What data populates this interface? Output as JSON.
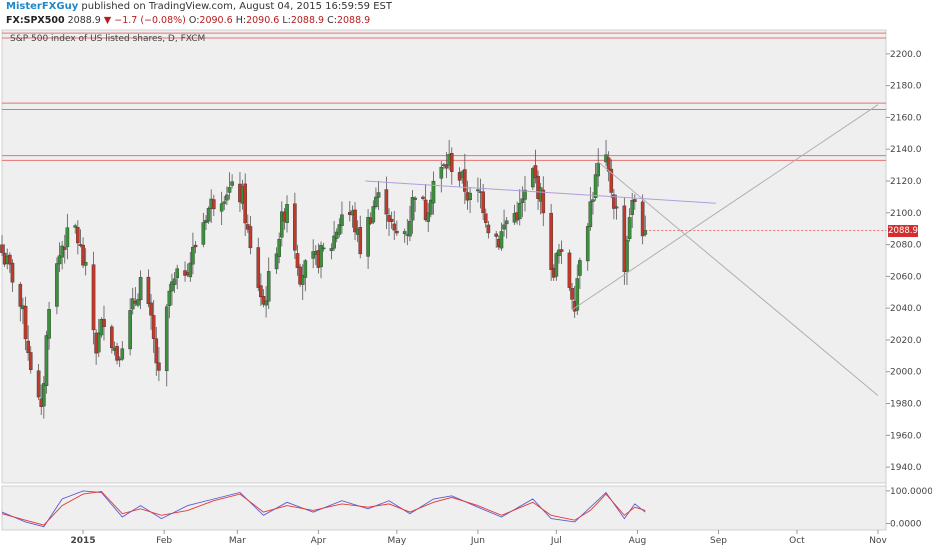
{
  "header": {
    "username": "MisterFXGuy",
    "published_text": "published on TradingView.com, August 04, 2015 16:59:59 EST",
    "symbol": "FX:SPX500",
    "last_price": "2088.9",
    "change_arrow": "▼",
    "change": "−1.7 (−0.08%)",
    "open_label": "O:",
    "open": "2090.6",
    "high_label": "H:",
    "high": "2090.6",
    "low_label": "L:",
    "low": "2088.9",
    "close_label": "C:",
    "close": "2088.9"
  },
  "colors": {
    "up": "#3c8f3c",
    "down": "#c0392b",
    "resistance": "#e57373",
    "trendline_purple": "#b39ddb",
    "trendline_gray": "#b0b0b0",
    "rsi_blue": "#5b5bd6",
    "rsi_red": "#e53935",
    "badge": "#d32f2f"
  },
  "chart_data": {
    "type": "candlestick",
    "title": "S&P 500 index of US listed shares, D, FXCM",
    "price_axis": {
      "ylim": [
        1930,
        2215
      ],
      "ticks": [
        "2200.0",
        "2180.0",
        "2160.0",
        "2140.0",
        "2120.0",
        "2100.0",
        "2080.0",
        "2060.0",
        "2040.0",
        "2020.0",
        "2000.0",
        "1980.0",
        "1960.0",
        "1940.0"
      ],
      "last_price_label": "2088.9"
    },
    "time_axis": {
      "range": [
        "2014-12-01",
        "2015-11-01"
      ],
      "labels": [
        {
          "text": "2015",
          "date": "2015-01-01",
          "emphasis": true
        },
        {
          "text": "Feb",
          "date": "2015-02-01"
        },
        {
          "text": "Mar",
          "date": "2015-03-01"
        },
        {
          "text": "Apr",
          "date": "2015-04-01"
        },
        {
          "text": "May",
          "date": "2015-05-01"
        },
        {
          "text": "Jun",
          "date": "2015-06-01"
        },
        {
          "text": "Jul",
          "date": "2015-07-01"
        },
        {
          "text": "Aug",
          "date": "2015-08-01"
        },
        {
          "text": "Sep",
          "date": "2015-09-01"
        },
        {
          "text": "Oct",
          "date": "2015-10-01"
        },
        {
          "text": "Nov",
          "date": "2015-11-01"
        }
      ]
    },
    "close_path": [
      {
        "date": "2014-12-01",
        "close": 2075
      },
      {
        "date": "2014-12-05",
        "close": 2060
      },
      {
        "date": "2014-12-09",
        "close": 2035
      },
      {
        "date": "2014-12-12",
        "close": 2005
      },
      {
        "date": "2014-12-16",
        "close": 1972
      },
      {
        "date": "2014-12-19",
        "close": 2045
      },
      {
        "date": "2014-12-24",
        "close": 2080
      },
      {
        "date": "2014-12-29",
        "close": 2090
      },
      {
        "date": "2015-01-02",
        "close": 2062
      },
      {
        "date": "2015-01-06",
        "close": 2015
      },
      {
        "date": "2015-01-09",
        "close": 2035
      },
      {
        "date": "2015-01-14",
        "close": 2010
      },
      {
        "date": "2015-01-16",
        "close": 2020
      },
      {
        "date": "2015-01-21",
        "close": 2045
      },
      {
        "date": "2015-01-23",
        "close": 2058
      },
      {
        "date": "2015-01-27",
        "close": 2030
      },
      {
        "date": "2015-01-30",
        "close": 1995
      },
      {
        "date": "2015-02-03",
        "close": 2050
      },
      {
        "date": "2015-02-06",
        "close": 2058
      },
      {
        "date": "2015-02-11",
        "close": 2070
      },
      {
        "date": "2015-02-17",
        "close": 2100
      },
      {
        "date": "2015-02-20",
        "close": 2108
      },
      {
        "date": "2015-02-25",
        "close": 2115
      },
      {
        "date": "2015-03-03",
        "close": 2110
      },
      {
        "date": "2015-03-06",
        "close": 2075
      },
      {
        "date": "2015-03-11",
        "close": 2042
      },
      {
        "date": "2015-03-16",
        "close": 2080
      },
      {
        "date": "2015-03-20",
        "close": 2108
      },
      {
        "date": "2015-03-25",
        "close": 2062
      },
      {
        "date": "2015-03-31",
        "close": 2070
      },
      {
        "date": "2015-04-06",
        "close": 2080
      },
      {
        "date": "2015-04-10",
        "close": 2100
      },
      {
        "date": "2015-04-14",
        "close": 2098
      },
      {
        "date": "2015-04-17",
        "close": 2078
      },
      {
        "date": "2015-04-23",
        "close": 2110
      },
      {
        "date": "2015-04-27",
        "close": 2105
      },
      {
        "date": "2015-04-30",
        "close": 2085
      },
      {
        "date": "2015-05-05",
        "close": 2090
      },
      {
        "date": "2015-05-08",
        "close": 2115
      },
      {
        "date": "2015-05-12",
        "close": 2100
      },
      {
        "date": "2015-05-15",
        "close": 2120
      },
      {
        "date": "2015-05-19",
        "close": 2128
      },
      {
        "date": "2015-05-21",
        "close": 2133
      },
      {
        "date": "2015-05-26",
        "close": 2120
      },
      {
        "date": "2015-05-29",
        "close": 2108
      },
      {
        "date": "2015-06-02",
        "close": 2112
      },
      {
        "date": "2015-06-05",
        "close": 2092
      },
      {
        "date": "2015-06-09",
        "close": 2083
      },
      {
        "date": "2015-06-12",
        "close": 2095
      },
      {
        "date": "2015-06-17",
        "close": 2102
      },
      {
        "date": "2015-06-22",
        "close": 2125
      },
      {
        "date": "2015-06-26",
        "close": 2105
      },
      {
        "date": "2015-06-29",
        "close": 2060
      },
      {
        "date": "2015-07-02",
        "close": 2075
      },
      {
        "date": "2015-07-08",
        "close": 2045
      },
      {
        "date": "2015-07-10",
        "close": 2075
      },
      {
        "date": "2015-07-14",
        "close": 2105
      },
      {
        "date": "2015-07-17",
        "close": 2128
      },
      {
        "date": "2015-07-20",
        "close": 2130
      },
      {
        "date": "2015-07-24",
        "close": 2100
      },
      {
        "date": "2015-07-27",
        "close": 2068
      },
      {
        "date": "2015-07-29",
        "close": 2100
      },
      {
        "date": "2015-07-31",
        "close": 2108
      },
      {
        "date": "2015-08-03",
        "close": 2090
      },
      {
        "date": "2015-08-04",
        "close": 2088.9
      }
    ],
    "horizontal_levels": [
      {
        "bands": [
          2210,
          2213
        ],
        "color": "resistance"
      },
      {
        "bands": [
          2165,
          2169
        ],
        "color": "resistance"
      },
      {
        "bands": [
          2133,
          2136
        ],
        "color": "resistance"
      }
    ],
    "trendlines": [
      {
        "from": {
          "date": "2015-04-19",
          "price": 2120
        },
        "to": {
          "date": "2015-08-31",
          "price": 2106
        },
        "color": "trendline_purple"
      },
      {
        "from": {
          "date": "2015-07-07",
          "price": 2039
        },
        "to": {
          "date": "2015-11-01",
          "price": 2168
        },
        "color": "trendline_gray"
      },
      {
        "from": {
          "date": "2015-07-17",
          "price": 2132
        },
        "to": {
          "date": "2015-11-01",
          "price": 1985
        },
        "color": "trendline_gray"
      }
    ],
    "indicator": {
      "ylim": [
        -20,
        115
      ],
      "ticks": [
        "100.0000",
        "0.0000"
      ],
      "series": [
        {
          "color": "rsi_blue",
          "values": [
            {
              "date": "2014-12-01",
              "v": 35
            },
            {
              "date": "2014-12-10",
              "v": 5
            },
            {
              "date": "2014-12-17",
              "v": -10
            },
            {
              "date": "2014-12-24",
              "v": 75
            },
            {
              "date": "2015-01-01",
              "v": 100
            },
            {
              "date": "2015-01-08",
              "v": 95
            },
            {
              "date": "2015-01-16",
              "v": 20
            },
            {
              "date": "2015-01-23",
              "v": 55
            },
            {
              "date": "2015-01-31",
              "v": 15
            },
            {
              "date": "2015-02-10",
              "v": 55
            },
            {
              "date": "2015-02-20",
              "v": 75
            },
            {
              "date": "2015-03-02",
              "v": 95
            },
            {
              "date": "2015-03-11",
              "v": 25
            },
            {
              "date": "2015-03-20",
              "v": 65
            },
            {
              "date": "2015-03-30",
              "v": 35
            },
            {
              "date": "2015-04-10",
              "v": 70
            },
            {
              "date": "2015-04-20",
              "v": 45
            },
            {
              "date": "2015-04-28",
              "v": 70
            },
            {
              "date": "2015-05-06",
              "v": 30
            },
            {
              "date": "2015-05-15",
              "v": 75
            },
            {
              "date": "2015-05-22",
              "v": 85
            },
            {
              "date": "2015-06-01",
              "v": 50
            },
            {
              "date": "2015-06-10",
              "v": 20
            },
            {
              "date": "2015-06-22",
              "v": 75
            },
            {
              "date": "2015-06-29",
              "v": 15
            },
            {
              "date": "2015-07-08",
              "v": 5
            },
            {
              "date": "2015-07-14",
              "v": 50
            },
            {
              "date": "2015-07-20",
              "v": 95
            },
            {
              "date": "2015-07-27",
              "v": 15
            },
            {
              "date": "2015-07-31",
              "v": 60
            },
            {
              "date": "2015-08-04",
              "v": 35
            }
          ]
        },
        {
          "color": "rsi_red",
          "values": [
            {
              "date": "2014-12-01",
              "v": 30
            },
            {
              "date": "2014-12-10",
              "v": 10
            },
            {
              "date": "2014-12-17",
              "v": -5
            },
            {
              "date": "2014-12-24",
              "v": 55
            },
            {
              "date": "2015-01-01",
              "v": 90
            },
            {
              "date": "2015-01-08",
              "v": 98
            },
            {
              "date": "2015-01-16",
              "v": 30
            },
            {
              "date": "2015-01-23",
              "v": 45
            },
            {
              "date": "2015-01-31",
              "v": 25
            },
            {
              "date": "2015-02-10",
              "v": 40
            },
            {
              "date": "2015-02-20",
              "v": 70
            },
            {
              "date": "2015-03-02",
              "v": 90
            },
            {
              "date": "2015-03-11",
              "v": 35
            },
            {
              "date": "2015-03-20",
              "v": 55
            },
            {
              "date": "2015-03-30",
              "v": 40
            },
            {
              "date": "2015-04-10",
              "v": 60
            },
            {
              "date": "2015-04-20",
              "v": 50
            },
            {
              "date": "2015-04-28",
              "v": 60
            },
            {
              "date": "2015-05-06",
              "v": 35
            },
            {
              "date": "2015-05-15",
              "v": 65
            },
            {
              "date": "2015-05-22",
              "v": 80
            },
            {
              "date": "2015-06-01",
              "v": 55
            },
            {
              "date": "2015-06-10",
              "v": 25
            },
            {
              "date": "2015-06-22",
              "v": 65
            },
            {
              "date": "2015-06-29",
              "v": 25
            },
            {
              "date": "2015-07-08",
              "v": 10
            },
            {
              "date": "2015-07-14",
              "v": 40
            },
            {
              "date": "2015-07-20",
              "v": 90
            },
            {
              "date": "2015-07-27",
              "v": 25
            },
            {
              "date": "2015-07-31",
              "v": 50
            },
            {
              "date": "2015-08-04",
              "v": 40
            }
          ]
        }
      ]
    }
  }
}
